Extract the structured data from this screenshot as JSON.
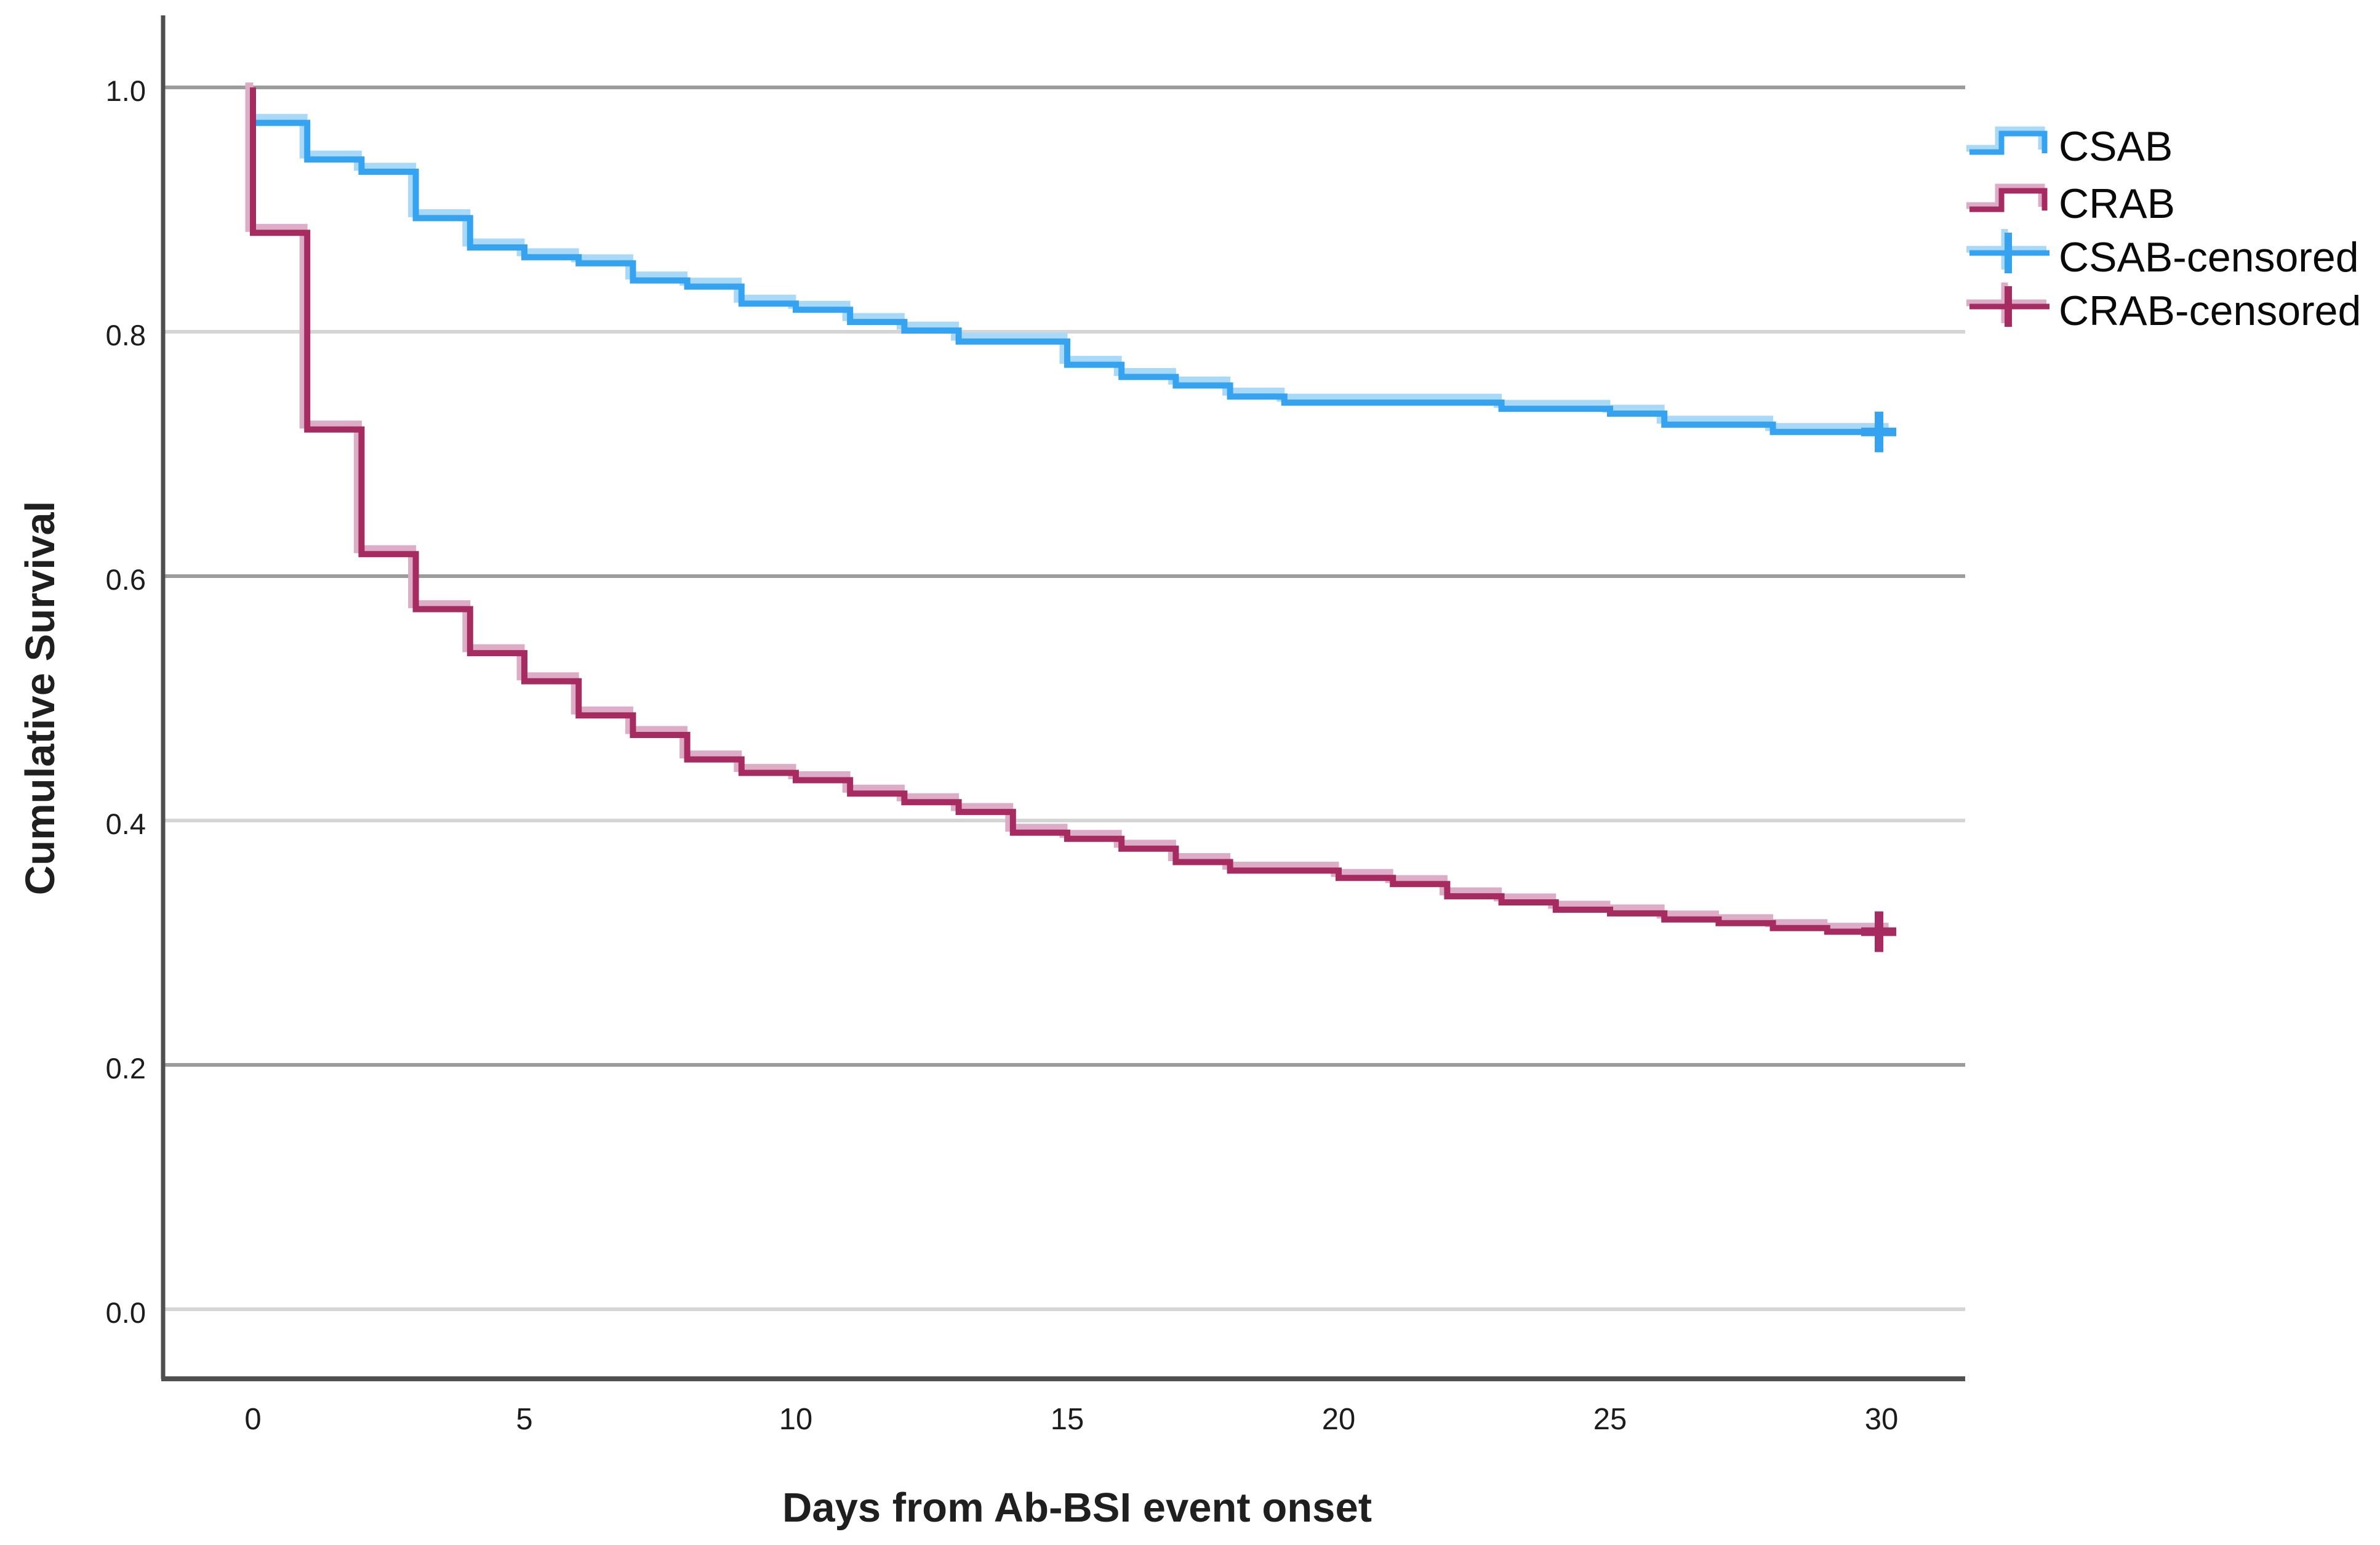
{
  "figure": {
    "kind": "kaplan-meier-survival-plot",
    "background": "#ffffff"
  },
  "y_axis": {
    "title": "Cumulative Survival",
    "ticks": [
      "1.0",
      "0.8",
      "0.6",
      "0.4",
      "0.2",
      "0.0"
    ],
    "tick_values": [
      1.0,
      0.8,
      0.6,
      0.4,
      0.2,
      0.0
    ]
  },
  "x_axis": {
    "title": "Days from Ab-BSI event onset",
    "ticks": [
      "0",
      "5",
      "10",
      "15",
      "20",
      "25",
      "30"
    ],
    "tick_values": [
      0,
      5,
      10,
      15,
      20,
      25,
      30
    ]
  },
  "legend": {
    "items": [
      {
        "label": "CSAB",
        "series": "CSAB",
        "glyph": "step-line"
      },
      {
        "label": "CRAB",
        "series": "CRAB",
        "glyph": "step-line"
      },
      {
        "label": "CSAB-censored",
        "series": "CSAB",
        "glyph": "censored-plus"
      },
      {
        "label": "CRAB-censored",
        "series": "CRAB",
        "glyph": "censored-plus"
      }
    ]
  },
  "colors": {
    "csab_line": "#36a3f1",
    "csab_halo": "#a9d9f8",
    "crab_line": "#a62b61",
    "crab_halo": "#ddadc7",
    "spine": "#4f4f4f",
    "grid_dark": "#9c9c9c",
    "grid_light": "#d5d5d5",
    "tick_text": "#1c1c1c"
  },
  "chart_data": {
    "type": "line",
    "subtype": "kaplan-meier-step",
    "title": "",
    "xlabel": "Days from Ab-BSI event onset",
    "ylabel": "Cumulative Survival",
    "xlim": [
      0,
      30
    ],
    "ylim": [
      0.0,
      1.0
    ],
    "x_ticks": [
      0,
      5,
      10,
      15,
      20,
      25,
      30
    ],
    "y_ticks": [
      0.0,
      0.2,
      0.4,
      0.6,
      0.8,
      1.0
    ],
    "grid": "horizontal",
    "legend_position": "right",
    "gridline_shades": [
      {
        "value": 1.0,
        "shade": "dark"
      },
      {
        "value": 0.8,
        "shade": "light"
      },
      {
        "value": 0.6,
        "shade": "dark"
      },
      {
        "value": 0.4,
        "shade": "light"
      },
      {
        "value": 0.2,
        "shade": "dark"
      },
      {
        "value": 0.0,
        "shade": "light"
      }
    ],
    "series": [
      {
        "name": "CSAB",
        "color": "#36a3f1",
        "halo_color": "#a9d9f8",
        "end_day": 30.2,
        "censored_at": {
          "day": 30,
          "value": 0.718
        },
        "steps": [
          [
            0,
            1.0
          ],
          [
            0,
            0.971
          ],
          [
            1,
            0.941
          ],
          [
            2,
            0.931
          ],
          [
            3,
            0.893
          ],
          [
            4,
            0.869
          ],
          [
            5,
            0.861
          ],
          [
            6,
            0.856
          ],
          [
            7,
            0.842
          ],
          [
            8,
            0.837
          ],
          [
            9,
            0.823
          ],
          [
            10,
            0.818
          ],
          [
            11,
            0.808
          ],
          [
            12,
            0.801
          ],
          [
            13,
            0.792
          ],
          [
            15,
            0.773
          ],
          [
            16,
            0.763
          ],
          [
            17,
            0.756
          ],
          [
            18,
            0.747
          ],
          [
            19,
            0.742
          ],
          [
            23,
            0.737
          ],
          [
            25,
            0.733
          ],
          [
            26,
            0.724
          ],
          [
            28,
            0.718
          ]
        ]
      },
      {
        "name": "CRAB",
        "color": "#a62b61",
        "halo_color": "#ddadc7",
        "end_day": 30.2,
        "censored_at": {
          "day": 30,
          "value": 0.309
        },
        "steps": [
          [
            0,
            1.0
          ],
          [
            0,
            0.881
          ],
          [
            1,
            0.72
          ],
          [
            2,
            0.618
          ],
          [
            3,
            0.573
          ],
          [
            4,
            0.537
          ],
          [
            5,
            0.514
          ],
          [
            6,
            0.486
          ],
          [
            7,
            0.47
          ],
          [
            8,
            0.45
          ],
          [
            9,
            0.439
          ],
          [
            10,
            0.433
          ],
          [
            11,
            0.422
          ],
          [
            12,
            0.415
          ],
          [
            13,
            0.407
          ],
          [
            14,
            0.39
          ],
          [
            15,
            0.385
          ],
          [
            16,
            0.377
          ],
          [
            17,
            0.366
          ],
          [
            18,
            0.359
          ],
          [
            20,
            0.353
          ],
          [
            21,
            0.348
          ],
          [
            22,
            0.338
          ],
          [
            23,
            0.333
          ],
          [
            24,
            0.327
          ],
          [
            25,
            0.324
          ],
          [
            26,
            0.319
          ],
          [
            27,
            0.316
          ],
          [
            28,
            0.312
          ],
          [
            29,
            0.309
          ]
        ]
      }
    ]
  }
}
